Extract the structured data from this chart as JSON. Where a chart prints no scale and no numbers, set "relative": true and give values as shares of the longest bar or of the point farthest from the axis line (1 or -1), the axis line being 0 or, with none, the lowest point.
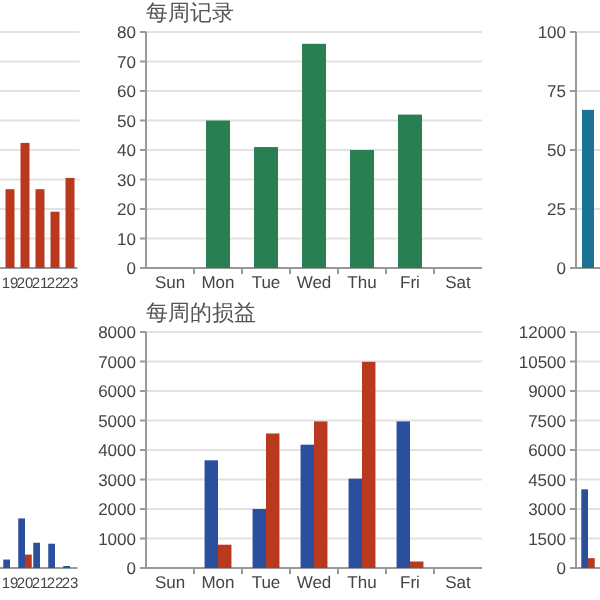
{
  "chart_data": [
    {
      "type": "bar",
      "relative": true,
      "categories": [
        "19",
        "20",
        "21",
        "22",
        "23"
      ],
      "values": [
        0.63,
        1,
        0.63,
        0.45,
        0.72
      ],
      "color": "#b8391d",
      "grid": "y"
    },
    {
      "type": "bar",
      "title": "每周记录",
      "categories": [
        "Sun",
        "Mon",
        "Tue",
        "Wed",
        "Thu",
        "Fri",
        "Sat"
      ],
      "values": [
        null,
        50,
        41,
        76,
        40,
        52,
        null
      ],
      "color": "#2a7f52",
      "ylim": [
        0,
        80
      ],
      "yticks": [
        0,
        10,
        20,
        30,
        40,
        50,
        60,
        70,
        80
      ],
      "grid": "y"
    },
    {
      "type": "bar",
      "categories": [
        null
      ],
      "values": [
        67
      ],
      "color": "#1a7393",
      "ylim": [
        0,
        100
      ],
      "yticks": [
        0,
        25,
        50,
        75,
        100
      ],
      "grid": "y"
    },
    {
      "type": "bar",
      "relative": true,
      "categories": [
        "19",
        "20",
        "21",
        "22",
        "23"
      ],
      "series": [
        {
          "color": "#2b4f9c",
          "values": [
            0.17,
            1,
            0.51,
            0.49,
            0.04
          ]
        },
        {
          "color": "#b8391d",
          "values": [
            null,
            0.27,
            null,
            null,
            null
          ]
        }
      ]
    },
    {
      "type": "bar",
      "title": "每周的损益",
      "categories": [
        "Sun",
        "Mon",
        "Tue",
        "Wed",
        "Thu",
        "Fri",
        "Sat"
      ],
      "series": [
        {
          "color": "#2b4f9c",
          "values": [
            null,
            3650,
            2000,
            4180,
            3030,
            4970,
            null
          ]
        },
        {
          "color": "#b8391d",
          "values": [
            null,
            790,
            4560,
            4970,
            6990,
            220,
            null
          ]
        }
      ],
      "ylim": [
        0,
        8000
      ],
      "yticks": [
        0,
        1000,
        2000,
        3000,
        4000,
        5000,
        6000,
        7000,
        8000
      ],
      "grid": "y"
    },
    {
      "type": "bar",
      "categories": [
        null
      ],
      "series": [
        {
          "color": "#2b4f9c",
          "values": [
            4000
          ]
        },
        {
          "color": "#b8391d",
          "values": [
            500
          ]
        }
      ],
      "ylim": [
        0,
        12000
      ],
      "yticks": [
        0,
        1500,
        3000,
        4500,
        6000,
        7500,
        9000,
        10500,
        12000
      ],
      "grid": "y"
    }
  ]
}
